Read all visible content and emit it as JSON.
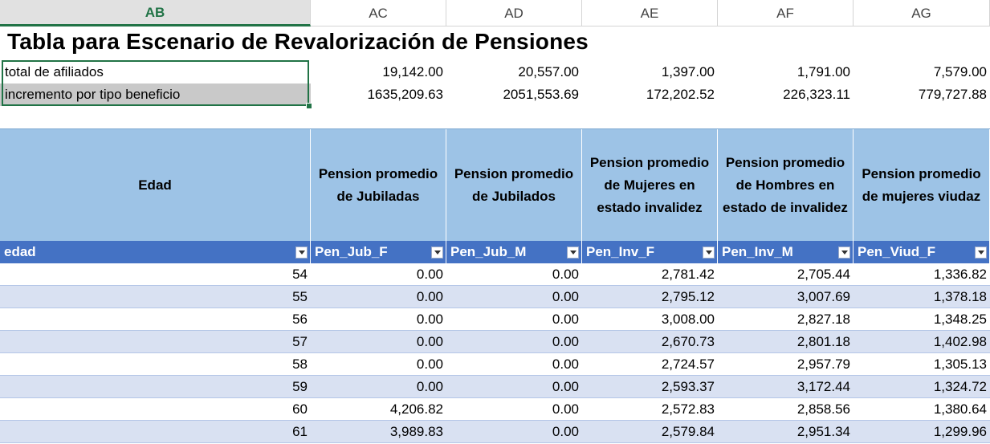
{
  "columns": [
    "AB",
    "AC",
    "AD",
    "AE",
    "AF",
    "AG"
  ],
  "title": "Tabla para Escenario de Revalorización de Pensiones",
  "summary": [
    {
      "label": "total de afiliados",
      "values": [
        "19,142.00",
        "20,557.00",
        "1,397.00",
        "1,791.00",
        "7,579.00"
      ]
    },
    {
      "label": "incremento por tipo beneficio",
      "values": [
        "1635,209.63",
        "2051,553.69",
        "172,202.52",
        "226,323.11",
        "779,727.88"
      ]
    }
  ],
  "table": {
    "headers": [
      "Edad",
      "Pension promedio de Jubiladas",
      "Pension promedio de Jubilados",
      "Pension promedio de Mujeres en estado invalidez",
      "Pension promedio de Hombres en estado de invalidez",
      "Pension promedio de mujeres viudaz"
    ],
    "fields": [
      "edad",
      "Pen_Jub_F",
      "Pen_Jub_M",
      "Pen_Inv_F",
      "Pen_Inv_M",
      "Pen_Viud_F"
    ],
    "rows": [
      [
        "54",
        "0.00",
        "0.00",
        "2,781.42",
        "2,705.44",
        "1,336.82"
      ],
      [
        "55",
        "0.00",
        "0.00",
        "2,795.12",
        "3,007.69",
        "1,378.18"
      ],
      [
        "56",
        "0.00",
        "0.00",
        "3,008.00",
        "2,827.18",
        "1,348.25"
      ],
      [
        "57",
        "0.00",
        "0.00",
        "2,670.73",
        "2,801.18",
        "1,402.98"
      ],
      [
        "58",
        "0.00",
        "0.00",
        "2,724.57",
        "2,957.79",
        "1,305.13"
      ],
      [
        "59",
        "0.00",
        "0.00",
        "2,593.37",
        "3,172.44",
        "1,324.72"
      ],
      [
        "60",
        "4,206.82",
        "0.00",
        "2,572.83",
        "2,858.56",
        "1,380.64"
      ],
      [
        "61",
        "3,989.83",
        "0.00",
        "2,579.84",
        "2,951.34",
        "1,299.96"
      ]
    ]
  },
  "colors": {
    "accent": "#217346",
    "header_fill": "#9dc3e6",
    "field_header_fill": "#4472c4",
    "band_fill": "#d9e1f2"
  }
}
